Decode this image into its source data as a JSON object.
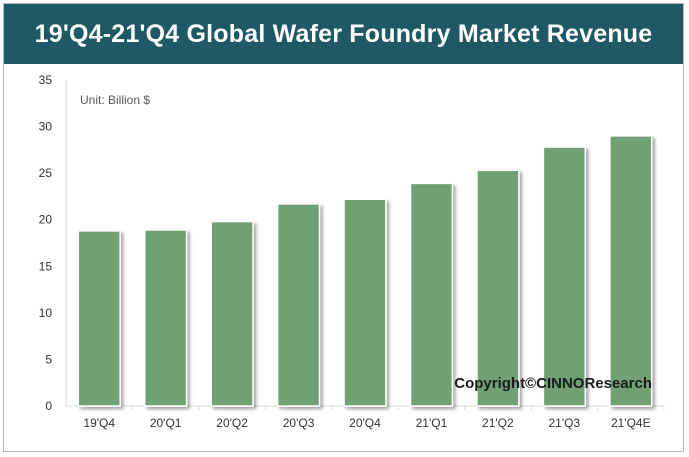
{
  "chart_data": {
    "type": "bar",
    "title": "19'Q4-21'Q4 Global Wafer Foundry Market Revenue",
    "unit_label": "Unit:  Billion $",
    "copyright": "Copyright©CINNOResearch",
    "categories": [
      "19'Q4",
      "20'Q1",
      "20'Q2",
      "20'Q3",
      "20'Q4",
      "21'Q1",
      "21'Q2",
      "21'Q3",
      "21'Q4E"
    ],
    "values": [
      18.8,
      18.9,
      19.8,
      21.7,
      22.2,
      23.9,
      25.3,
      27.8,
      29.0
    ],
    "ylim": [
      0,
      35
    ],
    "yticks": [
      0,
      5,
      10,
      15,
      20,
      25,
      30,
      35
    ],
    "xlabel": "",
    "ylabel": "",
    "grid": false,
    "bar_color": "#6fa173",
    "title_bar_color": "#1f5966"
  }
}
